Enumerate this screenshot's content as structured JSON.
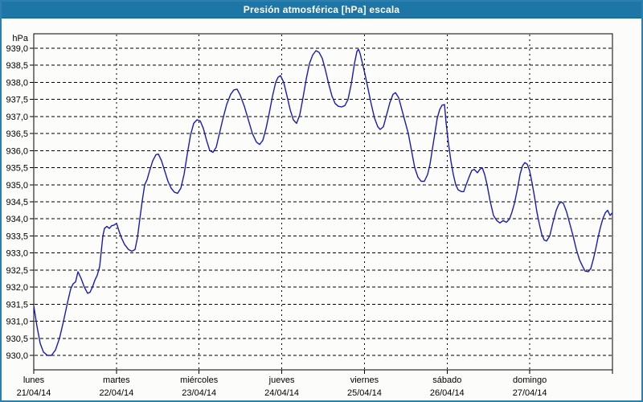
{
  "window": {
    "title": "Presión atmosférica [hPa] escala"
  },
  "colors": {
    "titlebar": "#1D76A6",
    "window_border": "#2E7FAD",
    "background": "#FCFDFA",
    "line": "#1A1AB8",
    "grid": "#000000",
    "text": "#000000"
  },
  "chart_data": {
    "type": "line",
    "title": "Presión atmosférica [hPa] escala",
    "ylabel": "hPa",
    "y_min": 930.0,
    "y_max": 939.0,
    "y_step": 0.5,
    "decimal_separator": ",",
    "grid": "dashed",
    "legend": "none",
    "x_unit": "days",
    "x_days": [
      {
        "name": "lunes",
        "date": "21/04/14"
      },
      {
        "name": "martes",
        "date": "22/04/14"
      },
      {
        "name": "miércoles",
        "date": "23/04/14"
      },
      {
        "name": "jueves",
        "date": "24/04/14"
      },
      {
        "name": "viernes",
        "date": "25/04/14"
      },
      {
        "name": "sábado",
        "date": "26/04/14"
      },
      {
        "name": "domingo",
        "date": "27/04/14"
      }
    ],
    "series": [
      {
        "name": "Presión atmosférica",
        "unit": "hPa",
        "color": "#1A1AB8",
        "points": [
          [
            0.0,
            931.45
          ],
          [
            0.039,
            930.85
          ],
          [
            0.078,
            930.35
          ],
          [
            0.117,
            930.1
          ],
          [
            0.165,
            930.0
          ],
          [
            0.214,
            930.0
          ],
          [
            0.262,
            930.15
          ],
          [
            0.311,
            930.5
          ],
          [
            0.36,
            931.0
          ],
          [
            0.408,
            931.55
          ],
          [
            0.447,
            931.95
          ],
          [
            0.476,
            932.1
          ],
          [
            0.506,
            932.15
          ],
          [
            0.535,
            932.45
          ],
          [
            0.574,
            932.25
          ],
          [
            0.612,
            932.0
          ],
          [
            0.651,
            931.82
          ],
          [
            0.681,
            931.85
          ],
          [
            0.71,
            932.0
          ],
          [
            0.739,
            932.2
          ],
          [
            0.768,
            932.35
          ],
          [
            0.797,
            932.6
          ],
          [
            0.817,
            933.05
          ],
          [
            0.836,
            933.5
          ],
          [
            0.856,
            933.72
          ],
          [
            0.885,
            933.78
          ],
          [
            0.914,
            933.72
          ],
          [
            0.943,
            933.8
          ],
          [
            0.972,
            933.82
          ],
          [
            1.001,
            933.87
          ],
          [
            1.031,
            933.65
          ],
          [
            1.06,
            933.45
          ],
          [
            1.099,
            933.25
          ],
          [
            1.147,
            933.1
          ],
          [
            1.186,
            933.05
          ],
          [
            1.225,
            933.1
          ],
          [
            1.254,
            933.45
          ],
          [
            1.283,
            934.0
          ],
          [
            1.313,
            934.55
          ],
          [
            1.342,
            935.0
          ],
          [
            1.371,
            935.15
          ],
          [
            1.4,
            935.4
          ],
          [
            1.439,
            935.7
          ],
          [
            1.478,
            935.88
          ],
          [
            1.507,
            935.9
          ],
          [
            1.546,
            935.7
          ],
          [
            1.585,
            935.4
          ],
          [
            1.624,
            935.1
          ],
          [
            1.662,
            934.9
          ],
          [
            1.701,
            934.78
          ],
          [
            1.74,
            934.75
          ],
          [
            1.779,
            934.9
          ],
          [
            1.818,
            935.3
          ],
          [
            1.857,
            935.9
          ],
          [
            1.896,
            936.45
          ],
          [
            1.935,
            936.8
          ],
          [
            1.974,
            936.9
          ],
          [
            2.013,
            936.87
          ],
          [
            2.051,
            936.65
          ],
          [
            2.09,
            936.3
          ],
          [
            2.129,
            936.0
          ],
          [
            2.168,
            935.95
          ],
          [
            2.207,
            936.1
          ],
          [
            2.246,
            936.5
          ],
          [
            2.285,
            936.9
          ],
          [
            2.333,
            937.35
          ],
          [
            2.382,
            937.65
          ],
          [
            2.421,
            937.78
          ],
          [
            2.46,
            937.8
          ],
          [
            2.499,
            937.62
          ],
          [
            2.547,
            937.3
          ],
          [
            2.596,
            936.9
          ],
          [
            2.644,
            936.5
          ],
          [
            2.693,
            936.25
          ],
          [
            2.732,
            936.18
          ],
          [
            2.771,
            936.3
          ],
          [
            2.81,
            936.65
          ],
          [
            2.849,
            937.1
          ],
          [
            2.888,
            937.6
          ],
          [
            2.926,
            938.0
          ],
          [
            2.956,
            938.15
          ],
          [
            2.985,
            938.2
          ],
          [
            3.024,
            938.0
          ],
          [
            3.063,
            937.6
          ],
          [
            3.101,
            937.2
          ],
          [
            3.14,
            936.9
          ],
          [
            3.179,
            936.8
          ],
          [
            3.218,
            937.05
          ],
          [
            3.257,
            937.55
          ],
          [
            3.296,
            938.1
          ],
          [
            3.335,
            938.55
          ],
          [
            3.374,
            938.8
          ],
          [
            3.413,
            938.93
          ],
          [
            3.451,
            938.88
          ],
          [
            3.49,
            938.7
          ],
          [
            3.529,
            938.35
          ],
          [
            3.568,
            937.95
          ],
          [
            3.607,
            937.6
          ],
          [
            3.646,
            937.38
          ],
          [
            3.685,
            937.3
          ],
          [
            3.724,
            937.28
          ],
          [
            3.763,
            937.32
          ],
          [
            3.801,
            937.5
          ],
          [
            3.84,
            937.95
          ],
          [
            3.879,
            938.55
          ],
          [
            3.908,
            938.9
          ],
          [
            3.928,
            938.97
          ],
          [
            3.947,
            938.85
          ],
          [
            3.976,
            938.55
          ],
          [
            4.006,
            938.25
          ],
          [
            4.044,
            937.8
          ],
          [
            4.083,
            937.35
          ],
          [
            4.122,
            936.95
          ],
          [
            4.161,
            936.7
          ],
          [
            4.19,
            936.62
          ],
          [
            4.229,
            936.7
          ],
          [
            4.268,
            937.05
          ],
          [
            4.307,
            937.4
          ],
          [
            4.346,
            937.65
          ],
          [
            4.375,
            937.7
          ],
          [
            4.414,
            937.55
          ],
          [
            4.453,
            937.2
          ],
          [
            4.492,
            936.85
          ],
          [
            4.531,
            936.5
          ],
          [
            4.569,
            936.0
          ],
          [
            4.608,
            935.5
          ],
          [
            4.647,
            935.22
          ],
          [
            4.686,
            935.1
          ],
          [
            4.725,
            935.1
          ],
          [
            4.764,
            935.3
          ],
          [
            4.793,
            935.6
          ],
          [
            4.822,
            936.05
          ],
          [
            4.851,
            936.5
          ],
          [
            4.881,
            936.95
          ],
          [
            4.91,
            937.2
          ],
          [
            4.939,
            937.33
          ],
          [
            4.968,
            937.35
          ],
          [
            4.988,
            936.8
          ],
          [
            5.017,
            936.2
          ],
          [
            5.046,
            935.7
          ],
          [
            5.075,
            935.3
          ],
          [
            5.104,
            935.0
          ],
          [
            5.133,
            934.85
          ],
          [
            5.172,
            934.8
          ],
          [
            5.201,
            934.8
          ],
          [
            5.231,
            935.0
          ],
          [
            5.269,
            935.25
          ],
          [
            5.299,
            935.42
          ],
          [
            5.328,
            935.45
          ],
          [
            5.367,
            935.35
          ],
          [
            5.396,
            935.45
          ],
          [
            5.425,
            935.5
          ],
          [
            5.454,
            935.3
          ],
          [
            5.483,
            935.0
          ],
          [
            5.522,
            934.5
          ],
          [
            5.561,
            934.1
          ],
          [
            5.6,
            933.95
          ],
          [
            5.639,
            933.88
          ],
          [
            5.678,
            933.95
          ],
          [
            5.717,
            933.9
          ],
          [
            5.756,
            934.0
          ],
          [
            5.785,
            934.2
          ],
          [
            5.814,
            934.45
          ],
          [
            5.853,
            934.9
          ],
          [
            5.882,
            935.3
          ],
          [
            5.911,
            935.55
          ],
          [
            5.94,
            935.65
          ],
          [
            5.969,
            935.6
          ],
          [
            5.999,
            935.4
          ],
          [
            6.028,
            935.05
          ],
          [
            6.057,
            934.65
          ],
          [
            6.086,
            934.2
          ],
          [
            6.115,
            933.85
          ],
          [
            6.144,
            933.55
          ],
          [
            6.174,
            933.38
          ],
          [
            6.203,
            933.35
          ],
          [
            6.242,
            933.5
          ],
          [
            6.281,
            933.9
          ],
          [
            6.319,
            934.25
          ],
          [
            6.349,
            934.42
          ],
          [
            6.378,
            934.5
          ],
          [
            6.407,
            934.45
          ],
          [
            6.446,
            934.2
          ],
          [
            6.485,
            933.85
          ],
          [
            6.524,
            933.5
          ],
          [
            6.563,
            933.1
          ],
          [
            6.601,
            932.8
          ],
          [
            6.64,
            932.6
          ],
          [
            6.669,
            932.47
          ],
          [
            6.708,
            932.45
          ],
          [
            6.738,
            932.55
          ],
          [
            6.767,
            932.8
          ],
          [
            6.796,
            933.1
          ],
          [
            6.825,
            933.45
          ],
          [
            6.854,
            933.75
          ],
          [
            6.883,
            934.0
          ],
          [
            6.913,
            934.18
          ],
          [
            6.942,
            934.25
          ],
          [
            6.971,
            934.1
          ],
          [
            7.0,
            934.18
          ]
        ]
      }
    ]
  }
}
